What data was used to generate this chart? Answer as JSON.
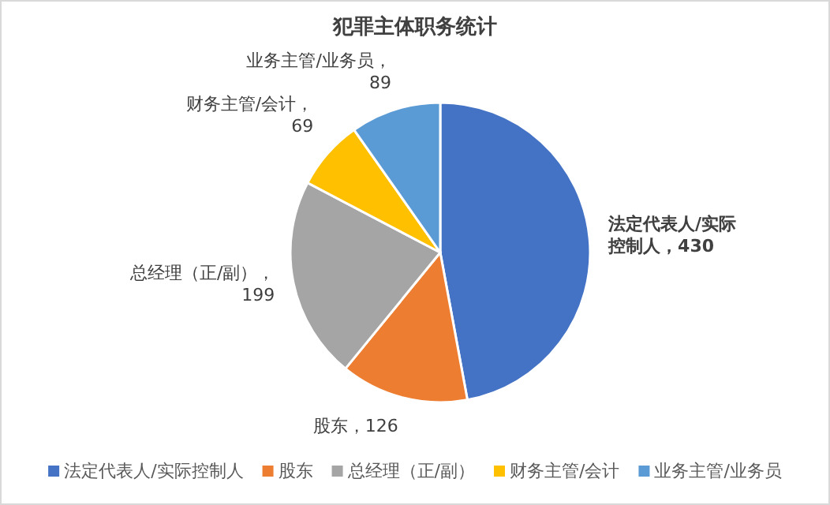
{
  "chart_data": {
    "type": "pie",
    "title": "犯罪主体职务统计",
    "categories": [
      "法定代表人/实际控制人",
      "股东",
      "总经理（正/副）",
      "财务主管/会计",
      "业务主管/业务员"
    ],
    "values": [
      430,
      126,
      199,
      69,
      89
    ],
    "colors": [
      "#4472c4",
      "#ed7d31",
      "#a5a5a5",
      "#ffc000",
      "#5b9bd5"
    ],
    "value_labels": [
      "法定代表人/实际控制人，430",
      "股东，126",
      "总经理（正/副），199",
      "财务主管/会计，69",
      "业务主管/业务员，89"
    ],
    "legend": "bottom"
  }
}
